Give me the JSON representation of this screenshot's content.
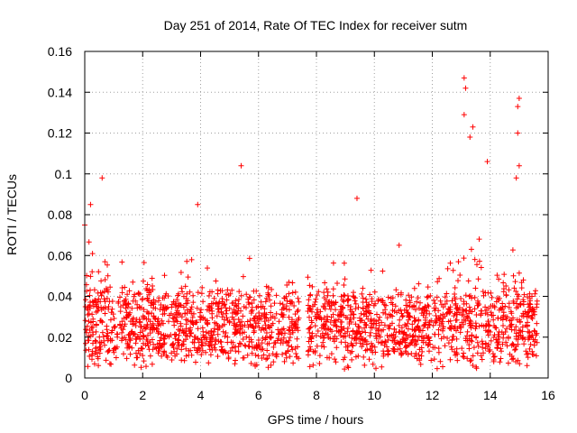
{
  "chart_data": {
    "type": "scatter",
    "title": "Day 251 of 2014, Rate Of TEC Index for receiver sutm",
    "xlabel": "GPS time / hours",
    "ylabel": "ROTI / TECUs",
    "xlim": [
      0,
      16
    ],
    "ylim": [
      0,
      0.16
    ],
    "xticks": [
      0,
      2,
      4,
      6,
      8,
      10,
      12,
      14,
      16
    ],
    "yticks": [
      0,
      0.02,
      0.04,
      0.06,
      0.08,
      0.1,
      0.12,
      0.14,
      0.16
    ],
    "ytick_labels": [
      "0",
      "0.02",
      "0.04",
      "0.06",
      "0.08",
      "0.1",
      "0.12",
      "0.14",
      "0.16"
    ],
    "grid": true,
    "marker": "+",
    "marker_color": "#ff0000",
    "data_gap_hours": [
      7.4,
      7.7
    ],
    "series": [
      {
        "name": "ROTI",
        "note": "Dense point cloud mostly between 0.005 and 0.05 TECU across 0–15.6 h with a data gap near 7.4–7.7 h; notable peaks listed below",
        "peaks": [
          {
            "x": 0.0,
            "y": 0.075
          },
          {
            "x": 0.2,
            "y": 0.085
          },
          {
            "x": 0.6,
            "y": 0.098
          },
          {
            "x": 3.9,
            "y": 0.085
          },
          {
            "x": 5.4,
            "y": 0.104
          },
          {
            "x": 9.4,
            "y": 0.088
          },
          {
            "x": 13.1,
            "y": 0.147
          },
          {
            "x": 13.15,
            "y": 0.142
          },
          {
            "x": 13.1,
            "y": 0.129
          },
          {
            "x": 13.4,
            "y": 0.123
          },
          {
            "x": 13.3,
            "y": 0.118
          },
          {
            "x": 13.9,
            "y": 0.106
          },
          {
            "x": 15.0,
            "y": 0.137
          },
          {
            "x": 14.95,
            "y": 0.133
          },
          {
            "x": 14.95,
            "y": 0.12
          },
          {
            "x": 15.0,
            "y": 0.104
          },
          {
            "x": 14.9,
            "y": 0.098
          }
        ]
      }
    ]
  }
}
